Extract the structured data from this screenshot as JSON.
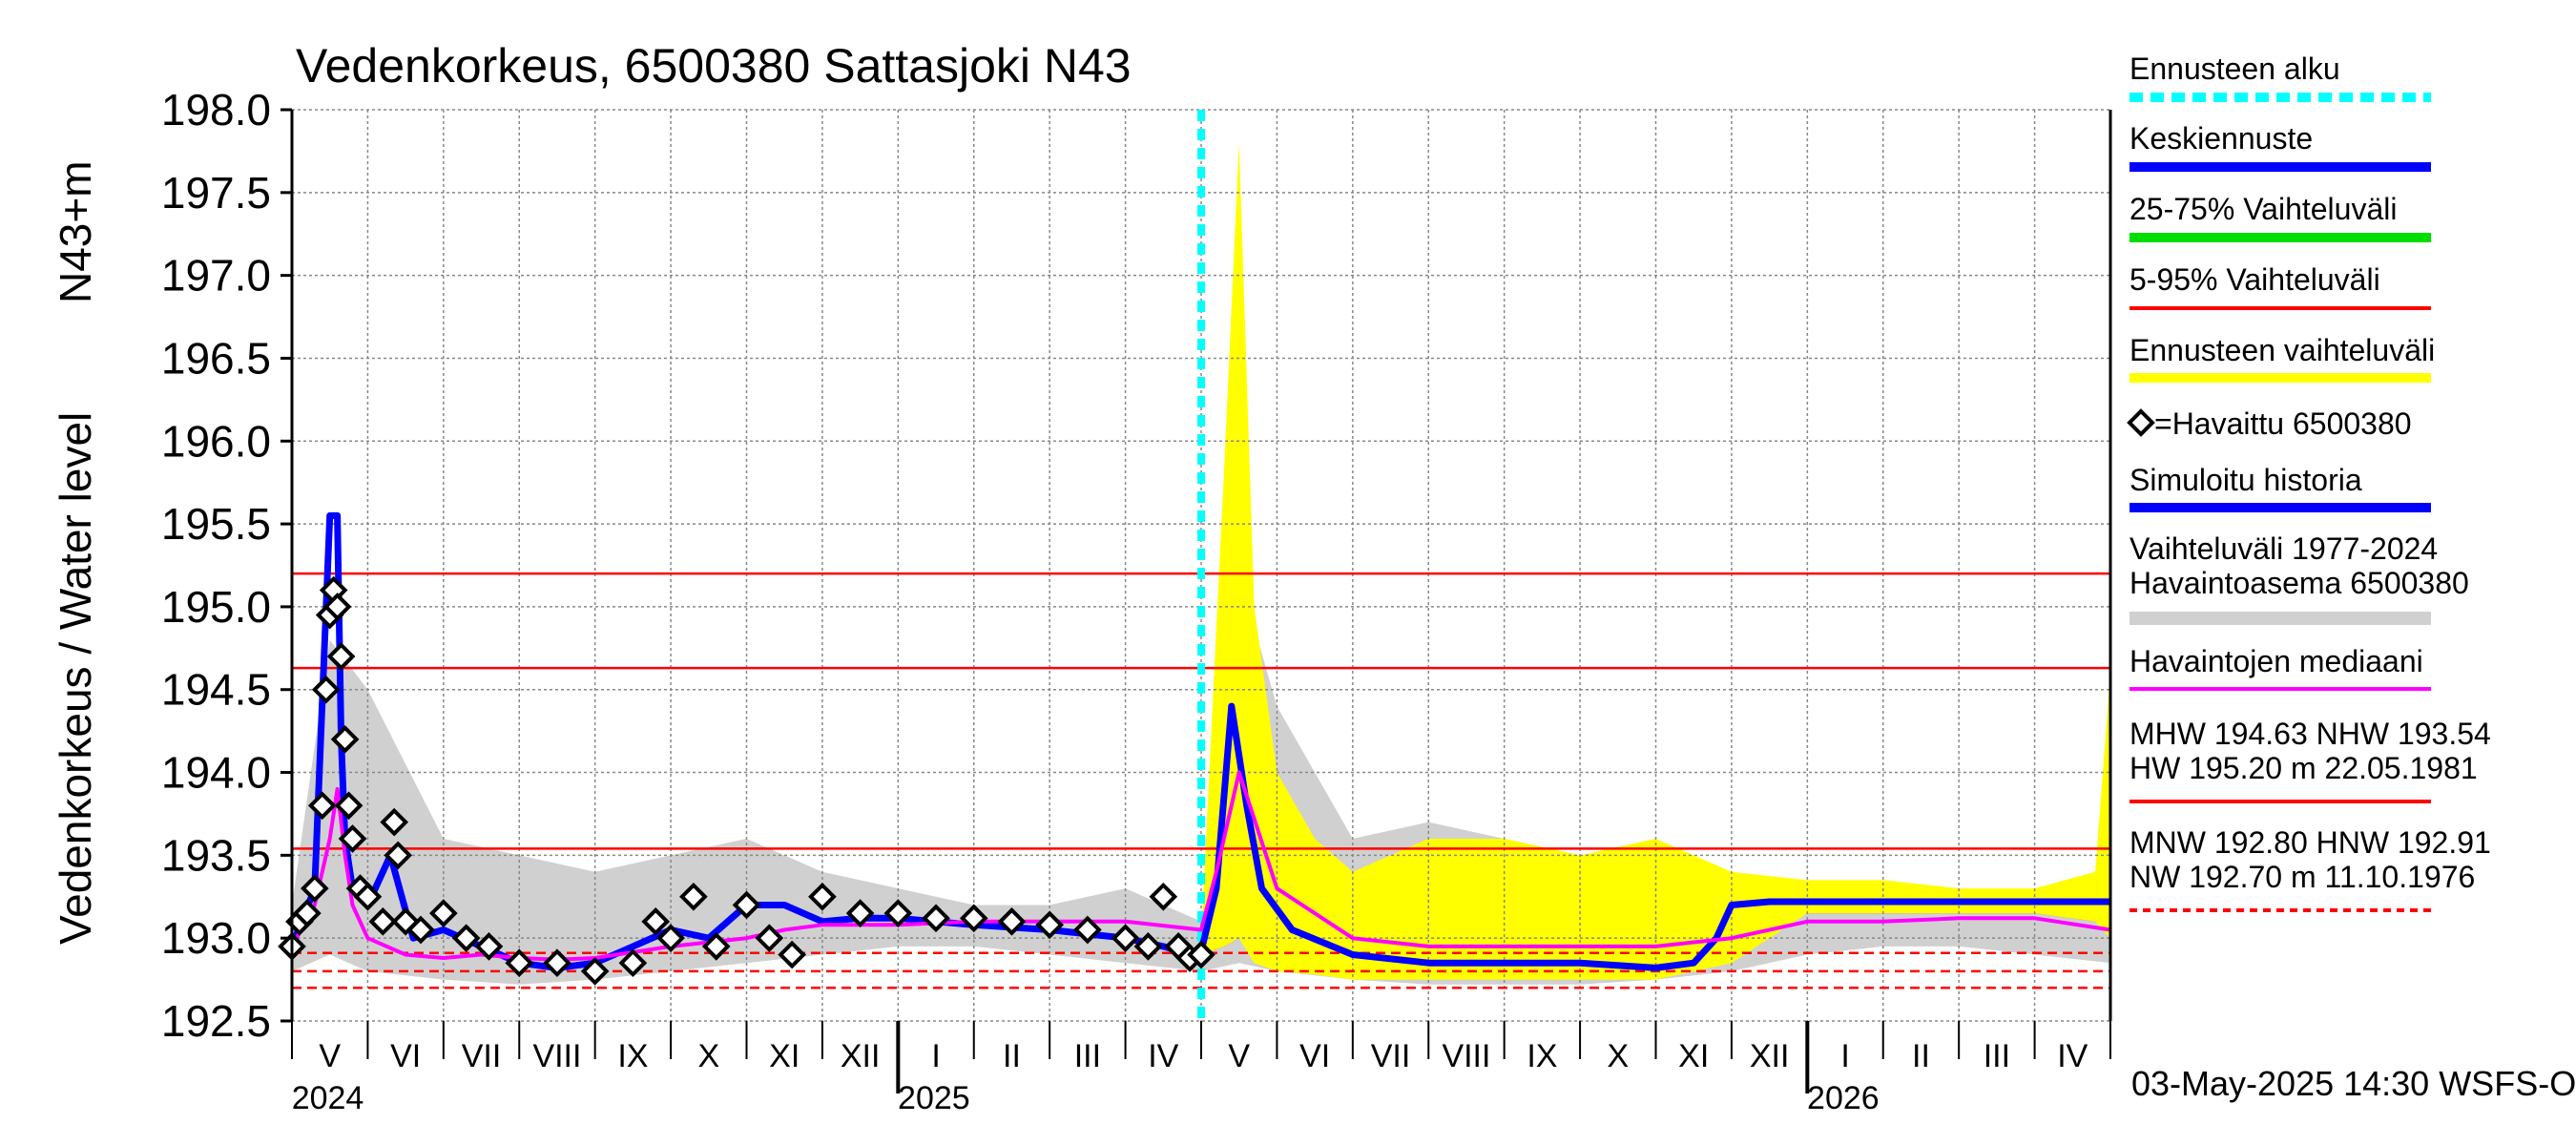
{
  "chart_data": {
    "type": "line",
    "title": "Vedenkorkeus, 6500380 Sattasjoki N43",
    "ylabel": "Vedenkorkeus / Water level",
    "ylabel_unit": "N43+m",
    "ylim": [
      192.5,
      198.0
    ],
    "yticks": [
      "198.0",
      "197.5",
      "197.0",
      "196.5",
      "196.0",
      "195.5",
      "195.0",
      "194.5",
      "194.0",
      "193.5",
      "193.0",
      "192.5"
    ],
    "months": [
      "V",
      "VI",
      "VII",
      "VIII",
      "IX",
      "X",
      "XI",
      "XII",
      "I",
      "II",
      "III",
      "IV",
      "V",
      "VI",
      "VII",
      "VIII",
      "IX",
      "X",
      "XI",
      "XII",
      "I",
      "II",
      "III",
      "IV"
    ],
    "years": [
      "2024",
      "2025",
      "2026"
    ],
    "forecast_start_month_index": 12,
    "reference_lines": [
      {
        "name": "HW",
        "value": 195.2,
        "style": "solid"
      },
      {
        "name": "MHW",
        "value": 194.63,
        "style": "solid"
      },
      {
        "name": "NHW",
        "value": 193.54,
        "style": "solid"
      },
      {
        "name": "HNW",
        "value": 192.91,
        "style": "dashed"
      },
      {
        "name": "MNW",
        "value": 192.8,
        "style": "dashed"
      },
      {
        "name": "NW",
        "value": 192.7,
        "style": "dashed"
      }
    ],
    "series": [
      {
        "name": "Simuloitu historia",
        "color": "#0000ff",
        "x": [
          0,
          0.3,
          0.5,
          0.6,
          0.65,
          0.7,
          0.8,
          1.0,
          1.3,
          1.6,
          2.0,
          2.5,
          3.0,
          3.5,
          4.0,
          4.5,
          5.0,
          5.5,
          6.0,
          6.5,
          7.0,
          7.5,
          8.0,
          9.0,
          10.0,
          11.0,
          11.5,
          11.9,
          12.0
        ],
        "values": [
          192.95,
          193.3,
          195.55,
          195.55,
          194.2,
          193.6,
          193.3,
          193.2,
          193.5,
          193.0,
          193.05,
          192.95,
          192.85,
          192.82,
          192.85,
          192.95,
          193.05,
          193.0,
          193.2,
          193.2,
          193.1,
          193.12,
          193.12,
          193.08,
          193.05,
          193.0,
          192.95,
          192.9,
          192.92
        ]
      },
      {
        "name": "Keskiennuste",
        "color": "#0000ff",
        "x": [
          12.0,
          12.2,
          12.4,
          12.6,
          12.8,
          13.2,
          14.0,
          15.0,
          16.0,
          17.0,
          18.0,
          18.5,
          18.8,
          19.0,
          19.5,
          20.0,
          21.0,
          22.0,
          23.0,
          24.0
        ],
        "values": [
          192.92,
          193.3,
          194.4,
          193.8,
          193.3,
          193.05,
          192.9,
          192.85,
          192.85,
          192.85,
          192.82,
          192.85,
          193.0,
          193.2,
          193.22,
          193.22,
          193.22,
          193.22,
          193.22,
          193.22
        ]
      },
      {
        "name": "Havaintojen mediaani",
        "color": "#ff00ff",
        "x": [
          0,
          0.3,
          0.5,
          0.6,
          0.7,
          0.8,
          1.0,
          1.5,
          2.0,
          2.5,
          3.0,
          3.5,
          4.0,
          5.0,
          6.0,
          6.5,
          7.0,
          8.0,
          9.0,
          10.0,
          11.0,
          12.0,
          12.2,
          12.5,
          13.0,
          14.0,
          15.0,
          16.0,
          17.0,
          18.0,
          19.0,
          20.0,
          21.0,
          22.0,
          23.0,
          24.0
        ],
        "values": [
          192.95,
          193.2,
          193.6,
          193.9,
          193.5,
          193.2,
          193.0,
          192.9,
          192.88,
          192.9,
          192.88,
          192.87,
          192.88,
          192.95,
          193.0,
          193.05,
          193.08,
          193.08,
          193.1,
          193.1,
          193.1,
          193.05,
          193.4,
          194.0,
          193.3,
          193.0,
          192.95,
          192.95,
          192.95,
          192.95,
          193.0,
          193.1,
          193.1,
          193.12,
          193.12,
          193.05
        ]
      }
    ],
    "bands": [
      {
        "name": "Ennusteen vaihteluväli",
        "color": "#ffff00",
        "x": [
          12.0,
          12.3,
          12.5,
          12.7,
          13.0,
          13.5,
          14.0,
          15.0,
          16.0,
          17.0,
          18.0,
          19.0,
          20.0,
          21.0,
          22.0,
          23.0,
          23.8,
          24.0
        ],
        "upper": [
          193.0,
          195.8,
          197.8,
          195.0,
          194.0,
          193.6,
          193.4,
          193.6,
          193.6,
          193.5,
          193.6,
          193.4,
          193.35,
          193.35,
          193.3,
          193.3,
          193.4,
          194.6
        ],
        "lower": [
          192.9,
          192.95,
          193.0,
          192.85,
          192.8,
          192.78,
          192.75,
          192.75,
          192.75,
          192.75,
          192.75,
          192.85,
          193.15,
          193.15,
          193.15,
          193.15,
          193.1,
          193.0
        ]
      },
      {
        "name": "5-95% Vaihteluväli",
        "color": "#ff0000",
        "x": [
          12.0,
          12.3,
          12.5,
          12.7,
          13.0,
          13.5,
          14.0,
          15.0,
          16.0,
          17.0,
          18.0,
          19.0,
          20.0,
          21.0,
          22.0,
          23.0,
          23.8,
          24.0
        ],
        "upper": [
          193.0,
          194.8,
          195.9,
          194.3,
          193.6,
          193.3,
          193.2,
          193.2,
          193.3,
          193.2,
          193.3,
          193.3,
          193.3,
          193.3,
          193.3,
          193.25,
          193.3,
          193.9
        ],
        "lower": [
          192.9,
          192.95,
          193.0,
          192.88,
          192.82,
          192.8,
          192.78,
          192.78,
          192.78,
          192.78,
          192.78,
          192.9,
          193.15,
          193.15,
          193.15,
          193.15,
          193.1,
          193.05
        ]
      },
      {
        "name": "25-75% Vaihteluväli",
        "color": "#00dd00",
        "x": [
          12.0,
          12.3,
          12.5,
          12.7,
          13.0,
          13.5,
          14.0,
          15.0,
          16.0,
          17.0,
          18.0,
          18.5,
          19.0,
          20.0,
          22.0,
          24.0
        ],
        "upper": [
          192.95,
          194.0,
          195.0,
          194.1,
          193.4,
          193.05,
          193.0,
          192.95,
          192.95,
          192.95,
          193.0,
          193.15,
          193.26,
          193.25,
          193.25,
          193.25
        ],
        "lower": [
          192.92,
          193.1,
          193.9,
          193.4,
          193.05,
          192.9,
          192.85,
          192.82,
          192.82,
          192.82,
          192.8,
          192.85,
          193.18,
          193.2,
          193.2,
          193.2
        ]
      },
      {
        "name": "Vaihteluväli 1977-2024 Havaintoasema 6500380",
        "color": "#d0d0d0",
        "x": [
          0,
          0.5,
          1.0,
          2.0,
          3.0,
          4.0,
          5.0,
          6.0,
          7.0,
          8.0,
          9.0,
          10.0,
          11.0,
          12.0,
          12.5,
          13.0,
          14.0,
          15.0,
          16.0,
          17.0,
          18.0,
          19.0,
          20.0,
          21.0,
          22.0,
          23.0,
          24.0
        ],
        "upper": [
          193.2,
          194.8,
          194.5,
          193.6,
          193.5,
          193.4,
          193.5,
          193.6,
          193.4,
          193.3,
          193.2,
          193.2,
          193.3,
          193.1,
          195.2,
          194.4,
          193.6,
          193.7,
          193.6,
          193.5,
          193.4,
          193.3,
          193.3,
          193.3,
          193.2,
          193.2,
          193.3
        ],
        "lower": [
          192.8,
          192.9,
          192.8,
          192.75,
          192.72,
          192.75,
          192.8,
          192.85,
          192.9,
          192.95,
          192.95,
          192.9,
          192.85,
          192.8,
          192.85,
          192.8,
          192.75,
          192.72,
          192.72,
          192.72,
          192.75,
          192.8,
          192.9,
          192.95,
          192.95,
          192.9,
          192.85
        ]
      }
    ],
    "observed": {
      "name": "=Havaittu 6500380",
      "x": [
        0,
        0.1,
        0.2,
        0.3,
        0.4,
        0.45,
        0.5,
        0.55,
        0.6,
        0.65,
        0.7,
        0.75,
        0.8,
        0.9,
        1.0,
        1.2,
        1.35,
        1.4,
        1.5,
        1.7,
        2.0,
        2.3,
        2.6,
        3.0,
        3.5,
        4.0,
        4.5,
        4.8,
        5.0,
        5.3,
        5.6,
        6.0,
        6.3,
        6.6,
        7.0,
        7.5,
        8.0,
        8.5,
        9.0,
        9.5,
        10.0,
        10.5,
        11.0,
        11.3,
        11.5,
        11.7,
        11.85,
        12.0
      ],
      "values": [
        192.95,
        193.1,
        193.15,
        193.3,
        193.8,
        194.5,
        194.95,
        195.1,
        195.0,
        194.7,
        194.2,
        193.8,
        193.6,
        193.3,
        193.25,
        193.1,
        193.7,
        193.5,
        193.1,
        193.05,
        193.15,
        193.0,
        192.95,
        192.85,
        192.85,
        192.8,
        192.85,
        193.1,
        193.0,
        193.25,
        192.95,
        193.2,
        193.0,
        192.9,
        193.25,
        193.15,
        193.15,
        193.12,
        193.12,
        193.1,
        193.08,
        193.05,
        193.0,
        192.95,
        193.25,
        192.95,
        192.88,
        192.9
      ]
    },
    "legend": {
      "position": "right",
      "entries": [
        {
          "label": "Ennusteen alku",
          "color": "#00ffff",
          "style": "dashed"
        },
        {
          "label": "Keskiennuste",
          "color": "#0000ff",
          "style": "solid"
        },
        {
          "label": "25-75% Vaihteluväli",
          "color": "#00dd00",
          "style": "solid"
        },
        {
          "label": "5-95% Vaihteluväli",
          "color": "#ff0000",
          "style": "solid"
        },
        {
          "label": "Ennusteen vaihteluväli",
          "color": "#ffff00",
          "style": "solid"
        },
        {
          "label": "=Havaittu 6500380",
          "color": "#000000",
          "style": "marker"
        },
        {
          "label": "Simuloitu historia",
          "color": "#0000ff",
          "style": "solid"
        },
        {
          "label": "Vaihteluväli 1977-2024",
          "label2": " Havaintoasema 6500380",
          "color": "#d0d0d0",
          "style": "solid"
        },
        {
          "label": "Havaintojen mediaani",
          "color": "#ff00ff",
          "style": "solid"
        },
        {
          "label": "MHW 194.63 NHW 193.54",
          "label2": "HW 195.20 m 22.05.1981",
          "color": "#ff0000",
          "style": "solid"
        },
        {
          "label": "MNW 192.80 HNW 192.91",
          "label2": "NW 192.70 m 11.10.1976",
          "color": "#ff0000",
          "style": "dashed"
        }
      ]
    },
    "footer": "03-May-2025 14:30 WSFS-O"
  }
}
